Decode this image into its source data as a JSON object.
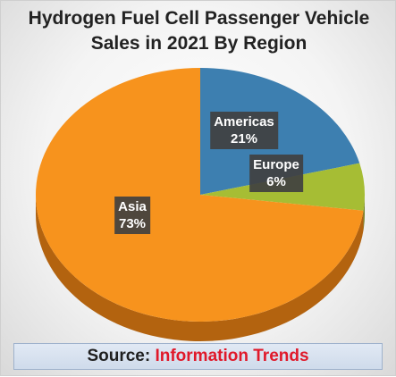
{
  "chart_data": {
    "type": "pie",
    "title": [
      "Hydrogen Fuel Cell Passenger Vehicle",
      "Sales in 2021 By Region"
    ],
    "categories": [
      "Americas",
      "Europe",
      "Asia"
    ],
    "values": [
      21,
      6,
      73
    ],
    "labels": [
      "21%",
      "6%",
      "73%"
    ],
    "colors": [
      "#3d7fb0",
      "#a6bd34",
      "#f7931d"
    ],
    "side_colors": [
      "#2a5a80",
      "#75862a",
      "#b3630f"
    ],
    "legend": "none"
  },
  "source": {
    "label": "Source:",
    "value": "Information Trends"
  }
}
